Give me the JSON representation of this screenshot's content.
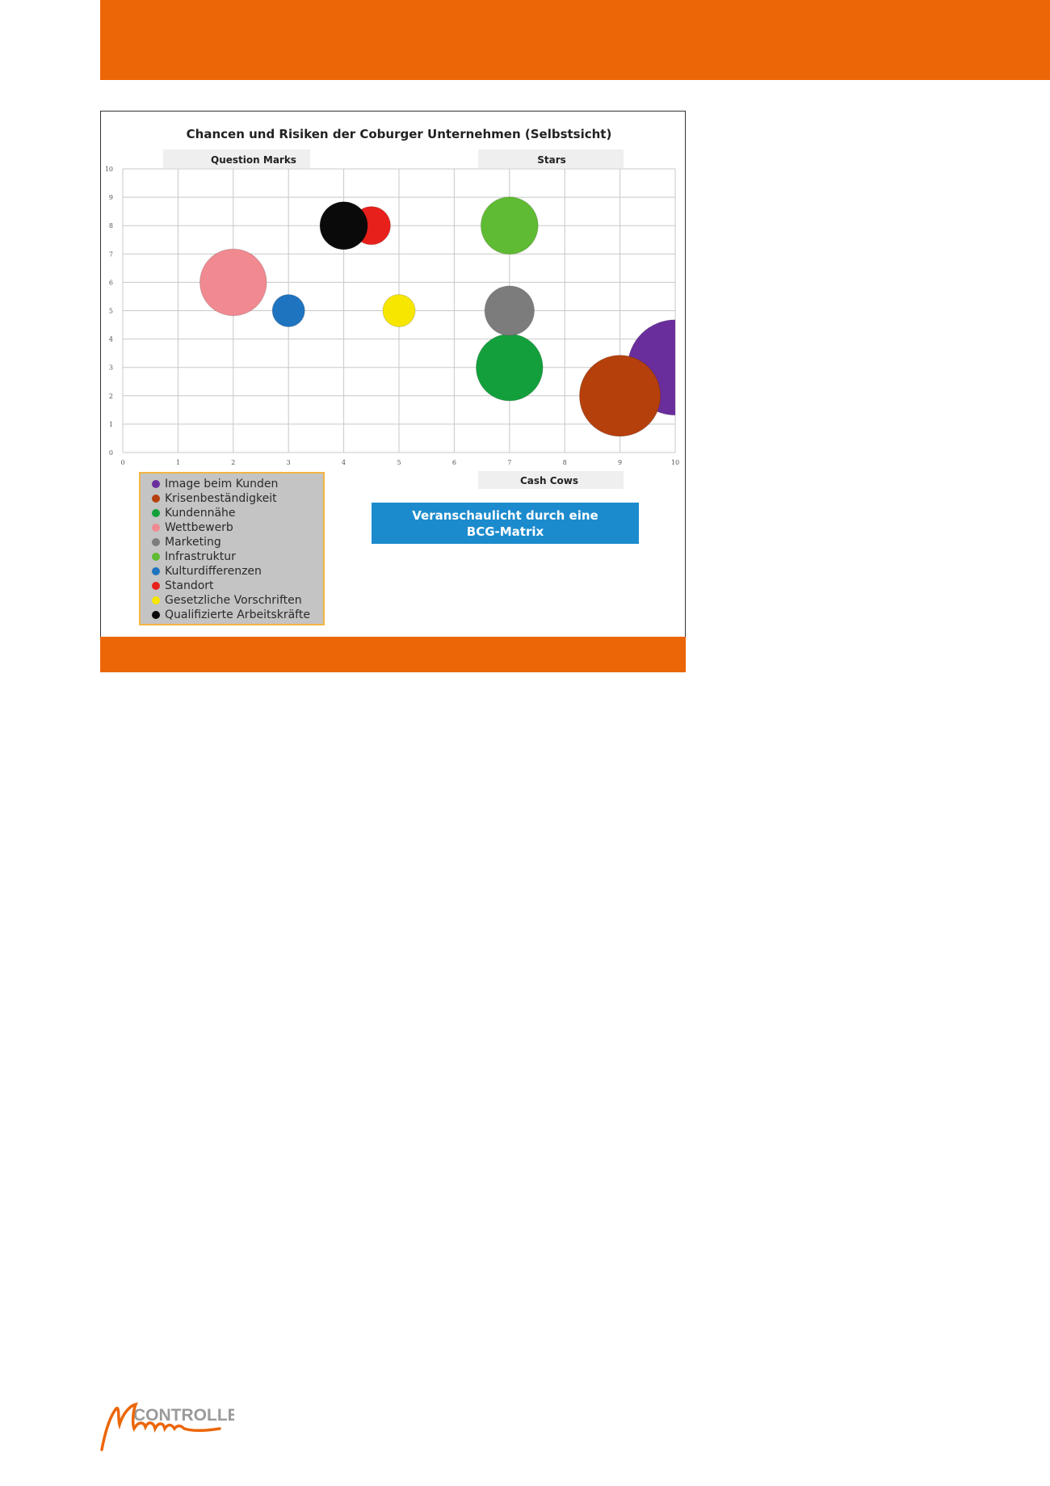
{
  "chart_data": {
    "type": "bubble",
    "title": "Chancen und Risiken der Coburger Unternehmen (Selbstsicht)",
    "xlim": [
      0,
      10
    ],
    "ylim": [
      0,
      10
    ],
    "x_ticks": [
      0,
      1,
      2,
      3,
      4,
      5,
      6,
      7,
      8,
      9,
      10
    ],
    "y_ticks": [
      0,
      1,
      2,
      3,
      4,
      5,
      6,
      7,
      8,
      9,
      10
    ],
    "grid": true,
    "legend_position": "bottom-left",
    "quadrant_labels": {
      "top_left": "Question Marks",
      "top_right": "Stars",
      "bottom_right": "Cash Cows"
    },
    "series": [
      {
        "name": "Image beim Kunden",
        "x": 10,
        "y": 3,
        "size": 10,
        "color": "#6a2e9c"
      },
      {
        "name": "Krisenbeständigkeit",
        "x": 9,
        "y": 2,
        "size": 8.5,
        "color": "#b5400c"
      },
      {
        "name": "Kundennähe",
        "x": 7,
        "y": 3,
        "size": 7,
        "color": "#13a03c"
      },
      {
        "name": "Wettbewerb",
        "x": 2,
        "y": 6,
        "size": 7,
        "color": "#f08a90"
      },
      {
        "name": "Marketing",
        "x": 7,
        "y": 5,
        "size": 5.2,
        "color": "#7c7c7c"
      },
      {
        "name": "Infrastruktur",
        "x": 7,
        "y": 8,
        "size": 6,
        "color": "#5fbb33"
      },
      {
        "name": "Kulturdifferenzen",
        "x": 3,
        "y": 5,
        "size": 3.4,
        "color": "#1f74c0"
      },
      {
        "name": "Standort",
        "x": 4.5,
        "y": 8,
        "size": 4,
        "color": "#e8201c"
      },
      {
        "name": "Gesetzliche Vorschriften",
        "x": 5,
        "y": 5,
        "size": 3.4,
        "color": "#f7e600"
      },
      {
        "name": "Qualifizierte Arbeitskräfte",
        "x": 4,
        "y": 8,
        "size": 5,
        "color": "#0a0a0a"
      }
    ]
  },
  "callout": {
    "line1": "Veranschaulicht durch eine",
    "line2": "BCG-Matrix"
  },
  "logo": {
    "text": "CONTROLLER Magazin"
  },
  "colors": {
    "accent": "#ec6608",
    "callout": "#1b8bcd"
  }
}
